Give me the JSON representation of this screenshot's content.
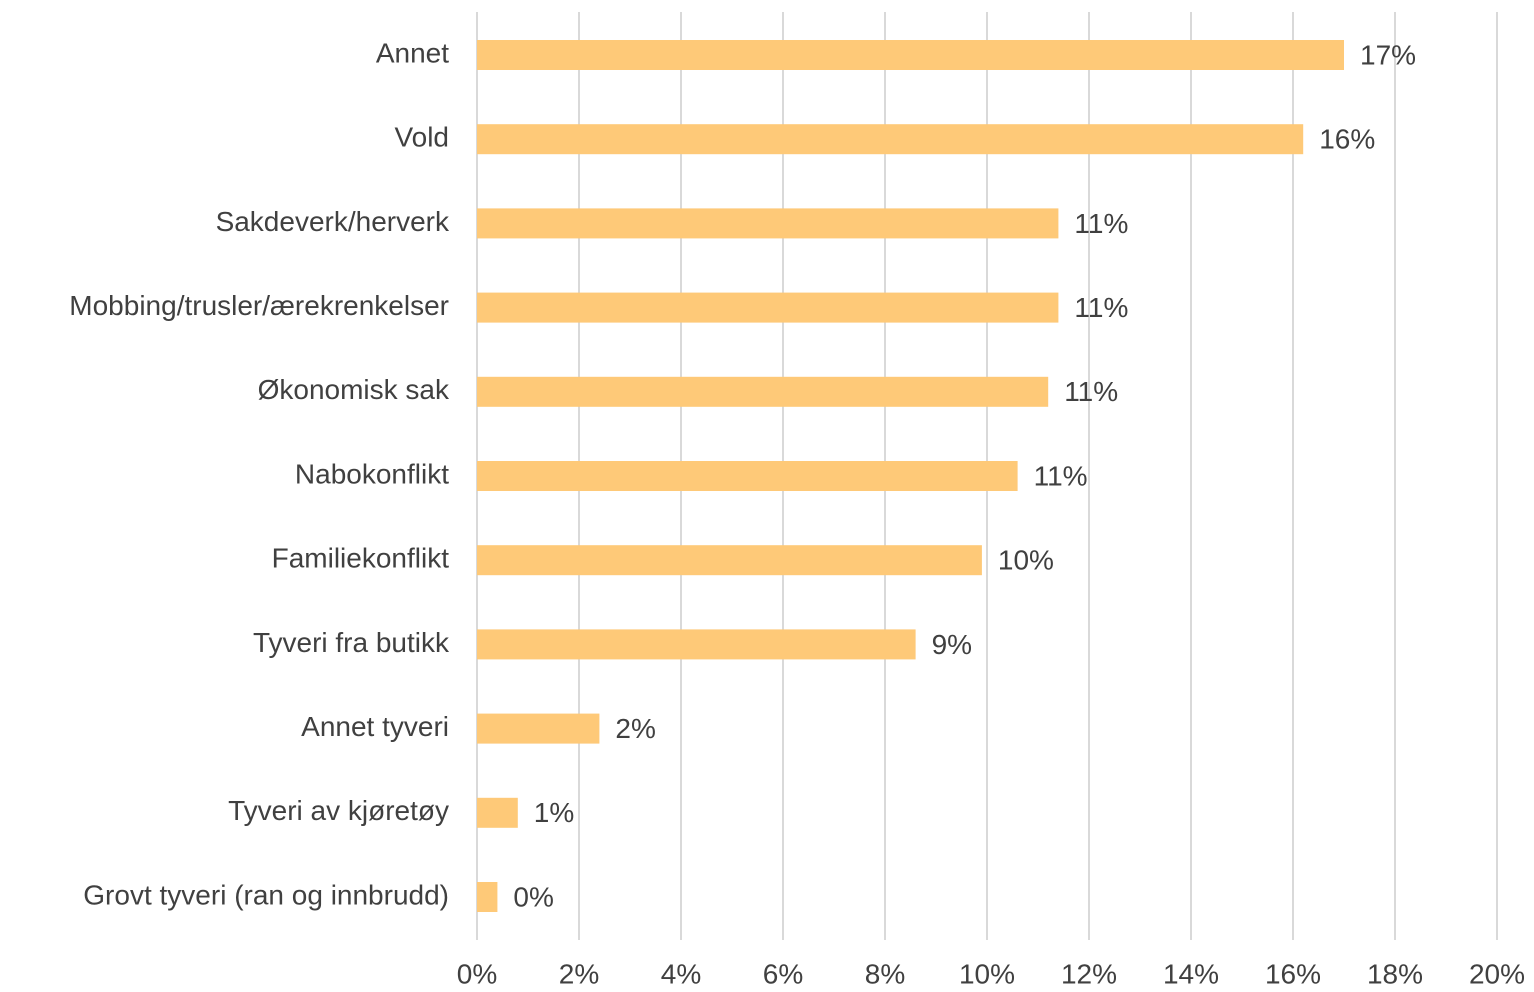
{
  "chart_data": {
    "type": "barh",
    "categories": [
      "Annet",
      "Vold",
      "Sakdeverk/herverk",
      "Mobbing/trusler/ærekrenkelser",
      "Økonomisk sak",
      "Nabokonflikt",
      "Familiekonflikt",
      "Tyveri fra butikk",
      "Annet tyveri",
      "Tyveri av kjøretøy",
      "Grovt tyveri (ran og innbrudd)"
    ],
    "values": [
      17.0,
      16.2,
      11.4,
      11.4,
      11.2,
      10.6,
      9.9,
      8.6,
      2.4,
      0.8,
      0.4
    ],
    "value_labels": [
      "17%",
      "16%",
      "11%",
      "11%",
      "11%",
      "11%",
      "10%",
      "9%",
      "2%",
      "1%",
      "0%"
    ],
    "color": "#fec978",
    "xlim": [
      0,
      20
    ],
    "xticks": [
      {
        "value": 0,
        "label": "0%"
      },
      {
        "value": 2,
        "label": "2%"
      },
      {
        "value": 4,
        "label": "4%"
      },
      {
        "value": 6,
        "label": "6%"
      },
      {
        "value": 8,
        "label": "8%"
      },
      {
        "value": 10,
        "label": "10%"
      },
      {
        "value": 12,
        "label": "12%"
      },
      {
        "value": 14,
        "label": "14%"
      },
      {
        "value": 16,
        "label": "16%"
      },
      {
        "value": 18,
        "label": "18%"
      },
      {
        "value": 20,
        "label": "20%"
      }
    ],
    "grid": true
  }
}
